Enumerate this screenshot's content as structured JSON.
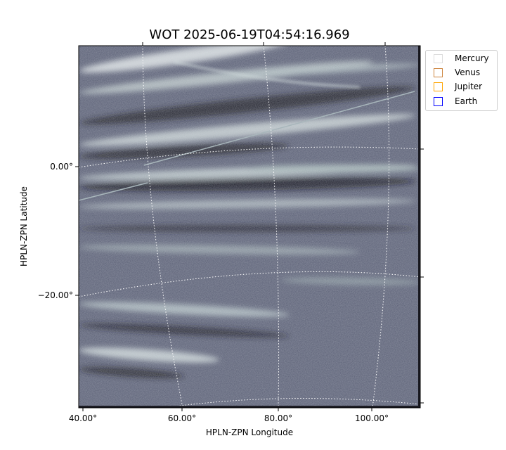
{
  "chart_data": {
    "type": "heatmap",
    "title": "WOT 2025-06-19T04:54:16.969",
    "xlabel": "HPLN-ZPN Longitude",
    "ylabel": "HPLN-ZPN Latitude",
    "x_ticks": [
      "40.00°",
      "60.00°",
      "80.00°",
      "100.00°"
    ],
    "y_ticks": [
      "0.00°",
      "−20.00°"
    ],
    "colormap": "bone",
    "grid": "dotted white coordinate grid",
    "legend_position": "upper-right outside",
    "legend": [
      {
        "label": "Mercury",
        "color": "#dddddd"
      },
      {
        "label": "Venus",
        "color": "#cd853f"
      },
      {
        "label": "Jupiter",
        "color": "#ffa500"
      },
      {
        "label": "Earth",
        "color": "#0000ff"
      }
    ]
  }
}
